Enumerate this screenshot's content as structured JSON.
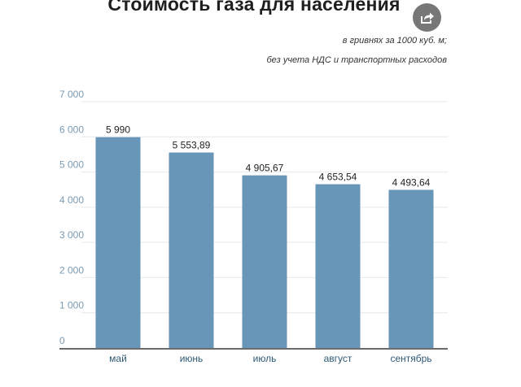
{
  "title": "Стоимость газа для населения",
  "subtitle_line1": "в гривнях за 1000 куб. м;",
  "subtitle_line2": "без учета НДС и транспортных расходов",
  "share_icon": "share-icon",
  "colors": {
    "bar": "#6896b8",
    "grid": "#e3e9ee",
    "axis": "#3a3a3a"
  },
  "chart_data": {
    "type": "bar",
    "title": "Стоимость газа для населения",
    "categories": [
      "май",
      "июнь",
      "июль",
      "август",
      "сентябрь"
    ],
    "values": [
      5990,
      5553.89,
      4905.67,
      4653.54,
      4493.64
    ],
    "value_labels": [
      "5 990",
      "5 553,89",
      "4 905,67",
      "4 653,54",
      "4 493,64"
    ],
    "ylim": [
      0,
      7000
    ],
    "yticks": [
      0,
      1000,
      2000,
      3000,
      4000,
      5000,
      6000,
      7000
    ],
    "ytick_labels": [
      "0",
      "1 000",
      "2 000",
      "3 000",
      "4 000",
      "5 000",
      "6 000",
      "7 000"
    ],
    "grid": true,
    "legend": "none"
  }
}
